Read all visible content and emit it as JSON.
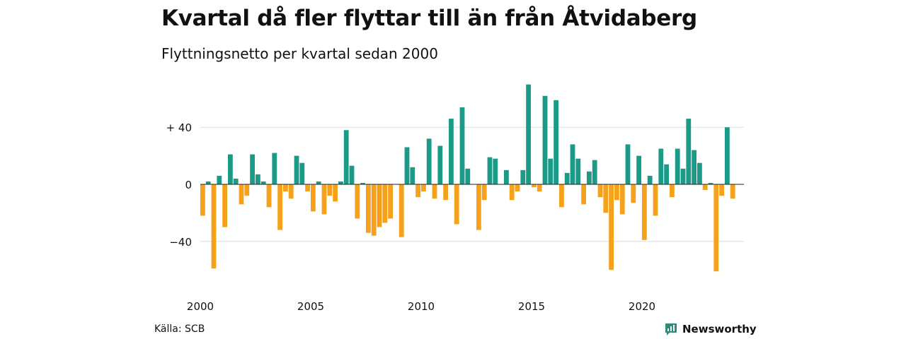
{
  "header": {
    "title": "Kvartal då fler flyttar till än från Åtvidaberg",
    "subtitle": "Flyttningsnetto per kvartal sedan 2000"
  },
  "footer": {
    "source": "Källa: SCB",
    "brand": "Newsworthy",
    "brand_icon": "bar-chart-logo-icon"
  },
  "colors": {
    "positive": "#1a9a87",
    "negative": "#f5a11c",
    "grid": "#dddddd",
    "zero_line": "#222222",
    "brand": "#2e8b7a"
  },
  "chart_data": {
    "type": "bar",
    "title": "",
    "xlabel": "",
    "ylabel": "",
    "x_start": "2000 Q1",
    "x_ticks": [
      {
        "year": 2000,
        "label": "2000"
      },
      {
        "year": 2005,
        "label": "2005"
      },
      {
        "year": 2010,
        "label": "2010"
      },
      {
        "year": 2015,
        "label": "2015"
      },
      {
        "year": 2020,
        "label": "2020"
      }
    ],
    "y_ticks": [
      {
        "value": 40,
        "label": "+ 40"
      },
      {
        "value": 0,
        "label": "0"
      },
      {
        "value": -40,
        "label": "−40"
      }
    ],
    "ylim": [
      -65,
      72
    ],
    "grid": true,
    "values": [
      -22,
      2,
      -59,
      6,
      -30,
      21,
      4,
      -14,
      -8,
      21,
      7,
      2,
      -16,
      22,
      -32,
      -5,
      -10,
      20,
      15,
      -5,
      -19,
      2,
      -21,
      -8,
      -12,
      2,
      38,
      13,
      -24,
      1,
      -34,
      -36,
      -30,
      -27,
      -24,
      0,
      -37,
      26,
      12,
      -9,
      -5,
      32,
      -10,
      27,
      -11,
      46,
      -28,
      54,
      11,
      0,
      -32,
      -11,
      19,
      18,
      0,
      10,
      -11,
      -5,
      10,
      70,
      -2,
      -5,
      62,
      18,
      59,
      -16,
      8,
      28,
      18,
      -14,
      9,
      17,
      -9,
      -20,
      -60,
      -11,
      -21,
      28,
      -13,
      20,
      -39,
      6,
      -22,
      25,
      14,
      -9,
      25,
      11,
      46,
      24,
      15,
      -4,
      1,
      -61,
      -8,
      40,
      -10
    ]
  }
}
